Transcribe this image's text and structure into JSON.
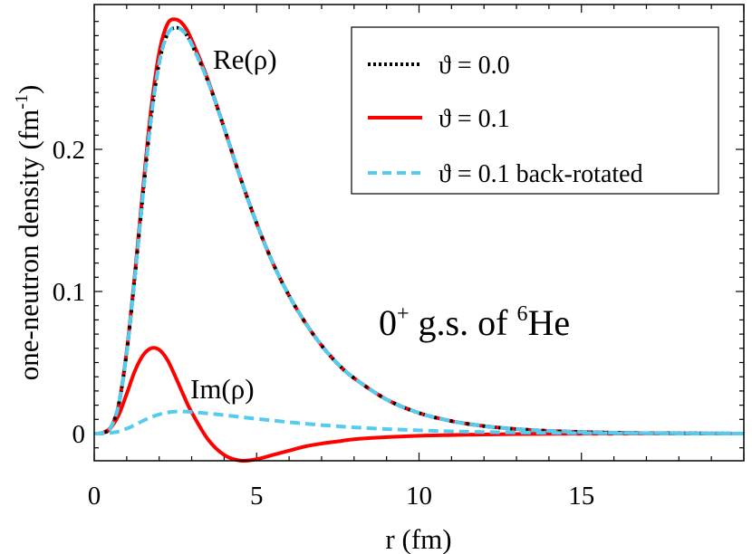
{
  "chart_data": {
    "type": "line",
    "xlabel": "r (fm)",
    "ylabel": {
      "main": "one-neutron density (fm",
      "sup": "-1",
      "close": ")"
    },
    "xlim": [
      0,
      20
    ],
    "ylim": [
      -0.02,
      0.3
    ],
    "x_ticks": [
      {
        "value": 0,
        "label": "0"
      },
      {
        "value": 5,
        "label": "5"
      },
      {
        "value": 10,
        "label": "10"
      },
      {
        "value": 15,
        "label": "15"
      }
    ],
    "y_ticks": [
      {
        "value": 0,
        "label": "0"
      },
      {
        "value": 0.1,
        "label": "0.1"
      },
      {
        "value": 0.2,
        "label": "0.2"
      }
    ],
    "x": [
      0,
      0.25,
      0.5,
      0.75,
      1,
      1.25,
      1.5,
      1.75,
      2,
      2.25,
      2.5,
      2.75,
      3,
      3.5,
      4,
      4.5,
      5,
      5.5,
      6,
      6.5,
      7,
      7.5,
      8,
      9,
      10,
      11,
      12,
      13,
      14,
      15,
      16,
      17,
      18,
      19,
      20
    ],
    "series": [
      {
        "name": "theta0",
        "legend_label": "ϑ = 0.0",
        "color": "#000000",
        "style": "dotted",
        "values": [
          0,
          0.0005,
          0.004,
          0.02,
          0.057,
          0.11,
          0.168,
          0.222,
          0.261,
          0.281,
          0.2855,
          0.283,
          0.274,
          0.248,
          0.215,
          0.18,
          0.148,
          0.12,
          0.097,
          0.078,
          0.062,
          0.049,
          0.039,
          0.024,
          0.0145,
          0.0088,
          0.0053,
          0.0032,
          0.0019,
          0.0011,
          0.0006,
          0.0003,
          0.0002,
          0.0001,
          0
        ]
      },
      {
        "name": "theta01_re",
        "legend_label": "ϑ = 0.1",
        "color": "#ff0000",
        "style": "solid",
        "values": [
          0,
          0.0005,
          0.004,
          0.02,
          0.058,
          0.112,
          0.172,
          0.228,
          0.268,
          0.288,
          0.2915,
          0.2875,
          0.277,
          0.249,
          0.215,
          0.18,
          0.148,
          0.12,
          0.097,
          0.078,
          0.062,
          0.049,
          0.039,
          0.024,
          0.0145,
          0.0088,
          0.0053,
          0.0032,
          0.0019,
          0.0011,
          0.0006,
          0.0003,
          0.0002,
          0.0001,
          0
        ]
      },
      {
        "name": "theta01_im",
        "legend_label": "",
        "color": "#ff0000",
        "style": "solid",
        "values": [
          0,
          0.0005,
          0.004,
          0.013,
          0.028,
          0.044,
          0.055,
          0.06,
          0.059,
          0.052,
          0.04,
          0.027,
          0.015,
          -0.004,
          -0.015,
          -0.019,
          -0.018,
          -0.015,
          -0.012,
          -0.009,
          -0.007,
          -0.0055,
          -0.004,
          -0.0025,
          -0.0015,
          -0.001,
          -0.0006,
          -0.0003,
          -0.0002,
          -0.0001,
          0,
          0,
          0,
          0,
          0
        ]
      },
      {
        "name": "theta01_back_re",
        "legend_label": "ϑ = 0.1 back-rotated",
        "color": "#55ccee",
        "style": "dashed",
        "values": [
          0,
          0.0005,
          0.004,
          0.02,
          0.057,
          0.11,
          0.168,
          0.222,
          0.261,
          0.281,
          0.2855,
          0.283,
          0.274,
          0.248,
          0.215,
          0.18,
          0.148,
          0.12,
          0.097,
          0.078,
          0.062,
          0.049,
          0.039,
          0.024,
          0.0145,
          0.0088,
          0.0053,
          0.0032,
          0.0019,
          0.0011,
          0.0006,
          0.0003,
          0.0002,
          0.0001,
          0
        ]
      },
      {
        "name": "theta01_back_im",
        "legend_label": "",
        "color": "#55ccee",
        "style": "dashed",
        "values": [
          0,
          0,
          0.0005,
          0.0015,
          0.0035,
          0.006,
          0.009,
          0.0115,
          0.0135,
          0.0148,
          0.0155,
          0.0155,
          0.0152,
          0.0142,
          0.013,
          0.0117,
          0.0104,
          0.0092,
          0.008,
          0.007,
          0.006,
          0.0052,
          0.0044,
          0.0032,
          0.0023,
          0.0016,
          0.0011,
          0.0008,
          0.0005,
          0.0003,
          0.0002,
          0.0001,
          0,
          0,
          0
        ]
      }
    ],
    "annotations": {
      "re": "Re(ρ)",
      "im": "Im(ρ)",
      "state_prefix": "0",
      "state_sup": "+",
      "state_mid": " g.s. of ",
      "state_mass": "6",
      "state_element": "He"
    },
    "legend_position": "top-right"
  }
}
